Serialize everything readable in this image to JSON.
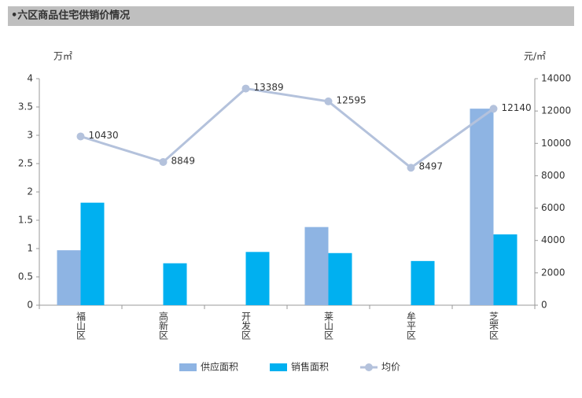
{
  "chart_data": {
    "type": "bar-line",
    "title": "•六区商品住宅供销价情况",
    "y_label": "万㎡",
    "y2_label": "元/㎡",
    "categories": [
      "福山区",
      "高新区",
      "开发区",
      "莱山区",
      "牟平区",
      "芝罘区"
    ],
    "series": [
      {
        "name": "供应面积",
        "type": "bar",
        "color": "#8eb4e3",
        "values": [
          0.97,
          null,
          null,
          1.38,
          null,
          3.47
        ]
      },
      {
        "name": "销售面积",
        "type": "bar",
        "color": "#00b0f0",
        "values": [
          1.81,
          0.74,
          0.94,
          0.92,
          0.78,
          1.25
        ]
      },
      {
        "name": "均价",
        "type": "line",
        "axis": "y2",
        "color": "#b4c2dc",
        "values": [
          10430,
          8849,
          13389,
          12595,
          8497,
          12140
        ]
      }
    ],
    "ylim": [
      0,
      4
    ],
    "yticks": [
      0,
      0.5,
      1,
      1.5,
      2,
      2.5,
      3,
      3.5,
      4
    ],
    "y2lim": [
      0,
      14000
    ],
    "y2ticks": [
      0,
      2000,
      4000,
      6000,
      8000,
      10000,
      12000,
      14000
    ]
  }
}
